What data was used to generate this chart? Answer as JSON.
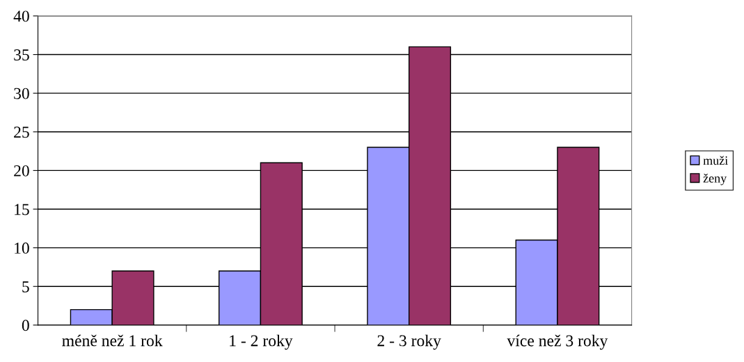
{
  "chart_data": {
    "type": "bar",
    "categories": [
      "méně než 1 rok",
      "1 - 2 roky",
      "2 - 3 roky",
      "více než 3 roky"
    ],
    "series": [
      {
        "name": "muži",
        "color": "#9999ff",
        "values": [
          2,
          7,
          23,
          11
        ]
      },
      {
        "name": "ženy",
        "color": "#993366",
        "values": [
          7,
          21,
          36,
          23
        ]
      }
    ],
    "ylim": [
      0,
      40
    ],
    "yticks": [
      0,
      5,
      10,
      15,
      20,
      25,
      30,
      35,
      40
    ],
    "grid": "y",
    "legend": "right"
  }
}
